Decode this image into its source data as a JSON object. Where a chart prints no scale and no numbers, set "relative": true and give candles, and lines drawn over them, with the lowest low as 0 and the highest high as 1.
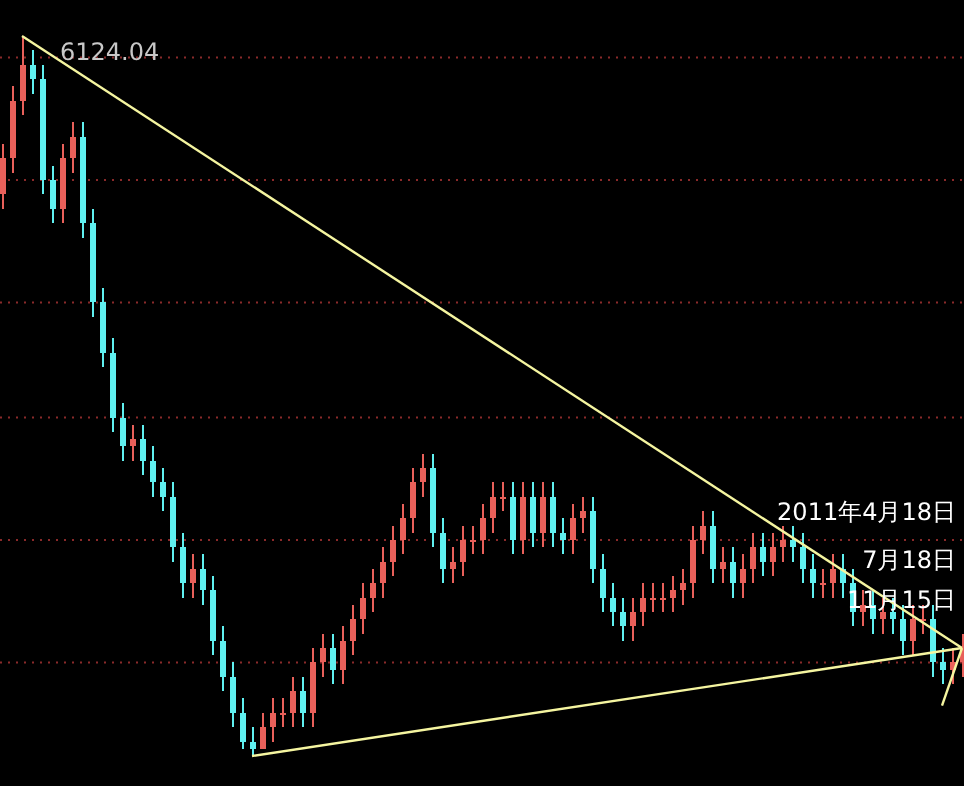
{
  "chart_data": {
    "type": "candlestick",
    "relative": true,
    "ref_lines": [
      {
        "axis": "y",
        "value": 0.97,
        "color": "#8a2a2a",
        "line_style": "dotted"
      },
      {
        "axis": "y",
        "value": 0.8,
        "color": "#8a2a2a",
        "line_style": "dotted"
      },
      {
        "axis": "y",
        "value": 0.63,
        "color": "#8a2a2a",
        "line_style": "dotted"
      },
      {
        "axis": "y",
        "value": 0.47,
        "color": "#8a2a2a",
        "line_style": "dotted"
      },
      {
        "axis": "y",
        "value": 0.3,
        "color": "#8a2a2a",
        "line_style": "dotted"
      },
      {
        "axis": "y",
        "value": 0.13,
        "color": "#8a2a2a",
        "line_style": "dotted"
      }
    ],
    "categories": [
      null,
      null,
      null,
      null,
      null,
      null,
      null,
      null,
      null,
      null,
      null,
      null,
      null,
      null,
      null,
      null,
      null,
      null,
      null,
      null,
      null,
      null,
      null,
      null,
      null,
      null,
      null,
      null,
      null,
      null,
      null,
      null,
      null,
      null,
      null,
      null,
      null,
      null,
      null,
      null,
      null,
      null,
      null,
      null,
      null,
      null,
      null,
      null,
      null,
      null,
      null,
      null,
      null,
      null,
      null,
      null,
      null,
      null,
      null,
      null,
      null,
      null,
      null,
      null,
      null,
      null,
      null,
      null,
      null,
      null,
      null,
      null,
      null,
      null,
      null,
      null,
      null,
      null,
      null,
      null,
      null,
      null,
      null,
      null,
      null,
      null,
      null,
      null,
      null,
      null,
      null,
      null,
      null,
      null,
      null,
      null,
      null
    ],
    "ohlc": [
      [
        0.78,
        0.85,
        0.76,
        0.83
      ],
      [
        0.83,
        0.93,
        0.81,
        0.91
      ],
      [
        0.91,
        1.0,
        0.89,
        0.96
      ],
      [
        0.96,
        0.98,
        0.92,
        0.94
      ],
      [
        0.94,
        0.96,
        0.78,
        0.8
      ],
      [
        0.8,
        0.82,
        0.74,
        0.76
      ],
      [
        0.76,
        0.85,
        0.74,
        0.83
      ],
      [
        0.83,
        0.88,
        0.81,
        0.86
      ],
      [
        0.86,
        0.88,
        0.72,
        0.74
      ],
      [
        0.74,
        0.76,
        0.61,
        0.63
      ],
      [
        0.63,
        0.65,
        0.54,
        0.56
      ],
      [
        0.56,
        0.58,
        0.45,
        0.47
      ],
      [
        0.47,
        0.49,
        0.41,
        0.43
      ],
      [
        0.43,
        0.46,
        0.41,
        0.44
      ],
      [
        0.44,
        0.46,
        0.39,
        0.41
      ],
      [
        0.41,
        0.43,
        0.36,
        0.38
      ],
      [
        0.38,
        0.4,
        0.34,
        0.36
      ],
      [
        0.36,
        0.38,
        0.27,
        0.29
      ],
      [
        0.29,
        0.31,
        0.22,
        0.24
      ],
      [
        0.24,
        0.28,
        0.22,
        0.26
      ],
      [
        0.26,
        0.28,
        0.21,
        0.23
      ],
      [
        0.23,
        0.25,
        0.14,
        0.16
      ],
      [
        0.16,
        0.18,
        0.09,
        0.11
      ],
      [
        0.11,
        0.13,
        0.04,
        0.06
      ],
      [
        0.06,
        0.08,
        0.01,
        0.02
      ],
      [
        0.02,
        0.04,
        0.0,
        0.01
      ],
      [
        0.01,
        0.06,
        0.01,
        0.04
      ],
      [
        0.04,
        0.08,
        0.02,
        0.06
      ],
      [
        0.06,
        0.08,
        0.04,
        0.06
      ],
      [
        0.06,
        0.11,
        0.04,
        0.09
      ],
      [
        0.09,
        0.11,
        0.04,
        0.06
      ],
      [
        0.06,
        0.15,
        0.04,
        0.13
      ],
      [
        0.13,
        0.17,
        0.11,
        0.15
      ],
      [
        0.15,
        0.17,
        0.1,
        0.12
      ],
      [
        0.12,
        0.18,
        0.1,
        0.16
      ],
      [
        0.16,
        0.21,
        0.14,
        0.19
      ],
      [
        0.19,
        0.24,
        0.17,
        0.22
      ],
      [
        0.22,
        0.26,
        0.2,
        0.24
      ],
      [
        0.24,
        0.29,
        0.22,
        0.27
      ],
      [
        0.27,
        0.32,
        0.25,
        0.3
      ],
      [
        0.3,
        0.35,
        0.28,
        0.33
      ],
      [
        0.33,
        0.4,
        0.31,
        0.38
      ],
      [
        0.38,
        0.42,
        0.36,
        0.4
      ],
      [
        0.4,
        0.42,
        0.29,
        0.31
      ],
      [
        0.31,
        0.33,
        0.24,
        0.26
      ],
      [
        0.26,
        0.29,
        0.24,
        0.27
      ],
      [
        0.27,
        0.32,
        0.25,
        0.3
      ],
      [
        0.3,
        0.32,
        0.28,
        0.3
      ],
      [
        0.3,
        0.35,
        0.28,
        0.33
      ],
      [
        0.33,
        0.38,
        0.31,
        0.36
      ],
      [
        0.36,
        0.38,
        0.34,
        0.36
      ],
      [
        0.36,
        0.38,
        0.28,
        0.3
      ],
      [
        0.3,
        0.38,
        0.28,
        0.36
      ],
      [
        0.36,
        0.38,
        0.29,
        0.31
      ],
      [
        0.31,
        0.38,
        0.29,
        0.36
      ],
      [
        0.36,
        0.38,
        0.29,
        0.31
      ],
      [
        0.31,
        0.33,
        0.28,
        0.3
      ],
      [
        0.3,
        0.35,
        0.28,
        0.33
      ],
      [
        0.33,
        0.36,
        0.31,
        0.34
      ],
      [
        0.34,
        0.36,
        0.24,
        0.26
      ],
      [
        0.26,
        0.28,
        0.2,
        0.22
      ],
      [
        0.22,
        0.24,
        0.18,
        0.2
      ],
      [
        0.2,
        0.22,
        0.16,
        0.18
      ],
      [
        0.18,
        0.22,
        0.16,
        0.2
      ],
      [
        0.2,
        0.24,
        0.18,
        0.22
      ],
      [
        0.22,
        0.24,
        0.2,
        0.22
      ],
      [
        0.22,
        0.24,
        0.2,
        0.22
      ],
      [
        0.22,
        0.25,
        0.2,
        0.23
      ],
      [
        0.23,
        0.26,
        0.21,
        0.24
      ],
      [
        0.24,
        0.32,
        0.22,
        0.3
      ],
      [
        0.3,
        0.34,
        0.28,
        0.32
      ],
      [
        0.32,
        0.34,
        0.24,
        0.26
      ],
      [
        0.26,
        0.29,
        0.24,
        0.27
      ],
      [
        0.27,
        0.29,
        0.22,
        0.24
      ],
      [
        0.24,
        0.28,
        0.22,
        0.26
      ],
      [
        0.26,
        0.31,
        0.24,
        0.29
      ],
      [
        0.29,
        0.31,
        0.25,
        0.27
      ],
      [
        0.27,
        0.31,
        0.25,
        0.29
      ],
      [
        0.29,
        0.32,
        0.27,
        0.3
      ],
      [
        0.3,
        0.32,
        0.27,
        0.29
      ],
      [
        0.29,
        0.31,
        0.24,
        0.26
      ],
      [
        0.26,
        0.28,
        0.22,
        0.24
      ],
      [
        0.24,
        0.26,
        0.22,
        0.24
      ],
      [
        0.24,
        0.28,
        0.22,
        0.26
      ],
      [
        0.26,
        0.28,
        0.22,
        0.24
      ],
      [
        0.24,
        0.26,
        0.18,
        0.2
      ],
      [
        0.2,
        0.23,
        0.18,
        0.21
      ],
      [
        0.21,
        0.23,
        0.17,
        0.19
      ],
      [
        0.19,
        0.22,
        0.17,
        0.2
      ],
      [
        0.2,
        0.22,
        0.17,
        0.19
      ],
      [
        0.19,
        0.21,
        0.14,
        0.16
      ],
      [
        0.16,
        0.21,
        0.14,
        0.19
      ],
      [
        0.19,
        0.21,
        0.17,
        0.19
      ],
      [
        0.19,
        0.21,
        0.11,
        0.13
      ],
      [
        0.13,
        0.15,
        0.1,
        0.12
      ],
      [
        0.12,
        0.15,
        0.1,
        0.13
      ],
      [
        0.13,
        0.17,
        0.11,
        0.15
      ]
    ],
    "colors": [
      "#e8605a",
      "#e8605a",
      "#e8605a",
      "#5ff0f0",
      "#5ff0f0",
      "#5ff0f0",
      "#e8605a",
      "#e8605a",
      "#5ff0f0",
      "#5ff0f0",
      "#5ff0f0",
      "#5ff0f0",
      "#5ff0f0",
      "#e8605a",
      "#5ff0f0",
      "#5ff0f0",
      "#5ff0f0",
      "#5ff0f0",
      "#5ff0f0",
      "#e8605a",
      "#5ff0f0",
      "#5ff0f0",
      "#5ff0f0",
      "#5ff0f0",
      "#5ff0f0",
      "#5ff0f0",
      "#e8605a",
      "#e8605a",
      "#e8605a",
      "#e8605a",
      "#5ff0f0",
      "#e8605a",
      "#e8605a",
      "#5ff0f0",
      "#e8605a",
      "#e8605a",
      "#e8605a",
      "#e8605a",
      "#e8605a",
      "#e8605a",
      "#e8605a",
      "#e8605a",
      "#e8605a",
      "#5ff0f0",
      "#5ff0f0",
      "#e8605a",
      "#e8605a",
      "#e8605a",
      "#e8605a",
      "#e8605a",
      "#e8605a",
      "#5ff0f0",
      "#e8605a",
      "#5ff0f0",
      "#e8605a",
      "#5ff0f0",
      "#5ff0f0",
      "#e8605a",
      "#e8605a",
      "#5ff0f0",
      "#5ff0f0",
      "#5ff0f0",
      "#5ff0f0",
      "#e8605a",
      "#e8605a",
      "#e8605a",
      "#e8605a",
      "#e8605a",
      "#e8605a",
      "#e8605a",
      "#e8605a",
      "#5ff0f0",
      "#e8605a",
      "#5ff0f0",
      "#e8605a",
      "#e8605a",
      "#5ff0f0",
      "#e8605a",
      "#e8605a",
      "#5ff0f0",
      "#5ff0f0",
      "#5ff0f0",
      "#e8605a",
      "#e8605a",
      "#5ff0f0",
      "#5ff0f0",
      "#e8605a",
      "#5ff0f0",
      "#e8605a",
      "#5ff0f0",
      "#5ff0f0",
      "#e8605a",
      "#e8605a",
      "#5ff0f0",
      "#5ff0f0",
      "#e8605a",
      "#e8605a"
    ],
    "series": [
      {
        "type": "line",
        "color": "#f5f5a0",
        "values": [
          null,
          null,
          1.0,
          null,
          null,
          null,
          null,
          null,
          null,
          null,
          null,
          null,
          null,
          null,
          null,
          null,
          null,
          null,
          null,
          null,
          null,
          null,
          null,
          null,
          null,
          null,
          null,
          null,
          null,
          null,
          null,
          null,
          null,
          null,
          null,
          null,
          null,
          null,
          null,
          null,
          null,
          null,
          null,
          null,
          null,
          null,
          null,
          null,
          null,
          null,
          null,
          null,
          null,
          null,
          null,
          null,
          null,
          null,
          null,
          null,
          null,
          null,
          null,
          null,
          null,
          null,
          null,
          null,
          null,
          null,
          null,
          null,
          null,
          null,
          null,
          null,
          null,
          null,
          null,
          null,
          null,
          null,
          null,
          null,
          null,
          null,
          null,
          null,
          null,
          null,
          null,
          null,
          null,
          null,
          null,
          null,
          0.15
        ]
      },
      {
        "type": "line",
        "color": "#f5f5a0",
        "values": [
          null,
          null,
          null,
          null,
          null,
          null,
          null,
          null,
          null,
          null,
          null,
          null,
          null,
          null,
          null,
          null,
          null,
          null,
          null,
          null,
          null,
          null,
          null,
          null,
          null,
          0.0,
          null,
          null,
          null,
          null,
          null,
          null,
          null,
          null,
          null,
          null,
          null,
          null,
          null,
          null,
          null,
          null,
          null,
          null,
          null,
          null,
          null,
          null,
          null,
          null,
          null,
          null,
          null,
          null,
          null,
          null,
          null,
          null,
          null,
          null,
          null,
          null,
          null,
          null,
          null,
          null,
          null,
          null,
          null,
          null,
          null,
          null,
          null,
          null,
          null,
          null,
          null,
          null,
          null,
          null,
          null,
          null,
          null,
          null,
          null,
          null,
          null,
          null,
          null,
          null,
          null,
          null,
          null,
          null,
          null,
          null,
          0.15
        ]
      },
      {
        "type": "line",
        "color": "#f5f5a0",
        "values": [
          null,
          null,
          null,
          null,
          null,
          null,
          null,
          null,
          null,
          null,
          null,
          null,
          null,
          null,
          null,
          null,
          null,
          null,
          null,
          null,
          null,
          null,
          null,
          null,
          null,
          null,
          null,
          null,
          null,
          null,
          null,
          null,
          null,
          null,
          null,
          null,
          null,
          null,
          null,
          null,
          null,
          null,
          null,
          null,
          null,
          null,
          null,
          null,
          null,
          null,
          null,
          null,
          null,
          null,
          null,
          null,
          null,
          null,
          null,
          null,
          null,
          null,
          null,
          null,
          null,
          null,
          null,
          null,
          null,
          null,
          null,
          null,
          null,
          null,
          null,
          null,
          null,
          null,
          null,
          null,
          null,
          null,
          null,
          null,
          null,
          null,
          null,
          null,
          null,
          null,
          null,
          null,
          null,
          null,
          0.07,
          null,
          0.15
        ]
      }
    ],
    "annotations": [
      "6124.04",
      "2011年4月18日",
      "7月18日",
      "11月15日"
    ]
  }
}
